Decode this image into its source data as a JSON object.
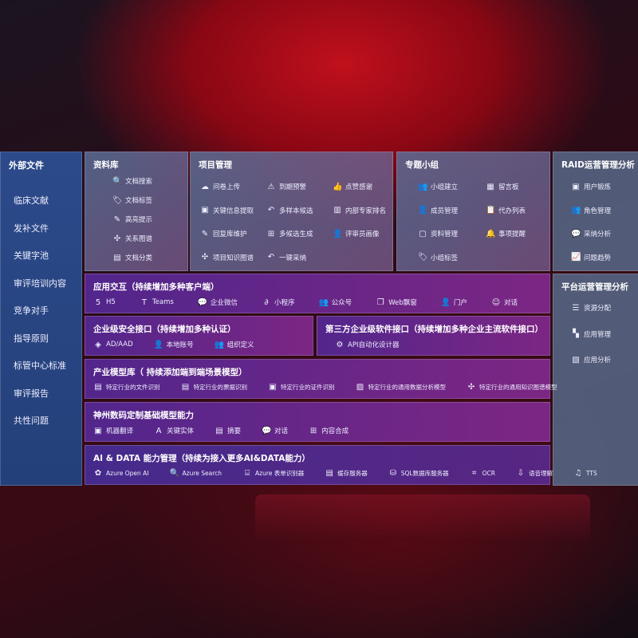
{
  "sidebar": {
    "title": "外部文件",
    "items": [
      "临床文献",
      "发补文件",
      "关键字池",
      "审评培训内容",
      "竞争对手",
      "指导原则",
      "标管中心标准",
      "审评报告",
      "共性问题"
    ]
  },
  "library": {
    "title": "资料库",
    "items": [
      {
        "icon": "doc-search-icon",
        "glyph": "🔍",
        "label": "文档搜索"
      },
      {
        "icon": "tag-icon",
        "glyph": "🏷",
        "label": "文档标签"
      },
      {
        "icon": "pen-icon",
        "glyph": "✎",
        "label": "高亮提示"
      },
      {
        "icon": "graph-icon",
        "glyph": "✣",
        "label": "关系图谱"
      },
      {
        "icon": "doc-classify-icon",
        "glyph": "▤",
        "label": "文档分类"
      }
    ]
  },
  "project": {
    "title": "项目管理",
    "items": [
      {
        "icon": "upload-icon",
        "glyph": "☁",
        "label": "问卷上传"
      },
      {
        "icon": "alarm-icon",
        "glyph": "⚠",
        "label": "到期预警"
      },
      {
        "icon": "thumbs-up-icon",
        "glyph": "👍",
        "label": "点赞感谢"
      },
      {
        "icon": "extract-icon",
        "glyph": "▣",
        "label": "关键信息提取"
      },
      {
        "icon": "reply-icon",
        "glyph": "↶",
        "label": "多样本候选"
      },
      {
        "icon": "rank-icon",
        "glyph": "▥",
        "label": "内部专家排名"
      },
      {
        "icon": "edit-icon",
        "glyph": "✎",
        "label": "回复库维护"
      },
      {
        "icon": "puzzle-icon",
        "glyph": "⊞",
        "label": "多候选生成"
      },
      {
        "icon": "user-icon",
        "glyph": "👤",
        "label": "评审员画像"
      },
      {
        "icon": "graph-icon",
        "glyph": "✣",
        "label": "项目知识图谱"
      },
      {
        "icon": "reply-icon",
        "glyph": "↶",
        "label": "一键采纳"
      }
    ]
  },
  "group": {
    "title": "专题小组",
    "items": [
      {
        "icon": "group-icon",
        "glyph": "👥",
        "label": "小组建立"
      },
      {
        "icon": "bbs-icon",
        "glyph": "▦",
        "label": "留言板"
      },
      {
        "icon": "member-icon",
        "glyph": "👤",
        "label": "成员管理"
      },
      {
        "icon": "clipboard-icon",
        "glyph": "📋",
        "label": "代办列表"
      },
      {
        "icon": "folder-icon",
        "glyph": "▢",
        "label": "资料管理"
      },
      {
        "icon": "bell-icon",
        "glyph": "🔔",
        "label": "事项提醒"
      },
      {
        "icon": "tag-icon",
        "glyph": "🏷",
        "label": "小组标签"
      }
    ]
  },
  "raid": {
    "title": "RAID运营管理分析",
    "items": [
      {
        "icon": "id-card-icon",
        "glyph": "▣",
        "label": "用户锻炼"
      },
      {
        "icon": "roles-icon",
        "glyph": "👥",
        "label": "角色管理"
      },
      {
        "icon": "qa-icon",
        "glyph": "💬",
        "label": "采纳分析"
      },
      {
        "icon": "trend-icon",
        "glyph": "📈",
        "label": "问题趋势"
      }
    ]
  },
  "platform": {
    "title": "平台运营管理分析",
    "items": [
      {
        "icon": "list-icon",
        "glyph": "☰",
        "label": "资源分配"
      },
      {
        "icon": "apps-icon",
        "glyph": "▚",
        "label": "应用管理"
      },
      {
        "icon": "analysis-icon",
        "glyph": "▧",
        "label": "应用分析"
      }
    ]
  },
  "app": {
    "title": "应用交互（持续增加多种客户端）",
    "items": [
      {
        "icon": "html5-icon",
        "glyph": "5",
        "label": "H5"
      },
      {
        "icon": "teams-icon",
        "glyph": "T",
        "label": "Teams"
      },
      {
        "icon": "wecom-icon",
        "glyph": "💬",
        "label": "企业微信"
      },
      {
        "icon": "miniapp-icon",
        "glyph": "∂",
        "label": "小程序"
      },
      {
        "icon": "official-account-icon",
        "glyph": "👥",
        "label": "公众号"
      },
      {
        "icon": "window-icon",
        "glyph": "❐",
        "label": "Web飘窗"
      },
      {
        "icon": "portal-icon",
        "glyph": "👤",
        "label": "门户"
      },
      {
        "icon": "chat-icon",
        "glyph": "☺",
        "label": "对话"
      }
    ]
  },
  "security": {
    "title": "企业级安全接口（持续增加多种认证）",
    "items": [
      {
        "icon": "ad-icon",
        "glyph": "◈",
        "label": "AD/AAD"
      },
      {
        "icon": "local-account-icon",
        "glyph": "👤",
        "label": "本地账号"
      },
      {
        "icon": "org-icon",
        "glyph": "👥",
        "label": "组织定义"
      }
    ]
  },
  "thirdparty": {
    "title": "第三方企业级软件接口（持续增加多种企业主流软件接口）",
    "items": [
      {
        "icon": "gear-icon",
        "glyph": "⚙",
        "label": "API自动化设计器"
      }
    ]
  },
  "industry": {
    "title": "产业模型库（ 持续添加端到端场景模型）",
    "items": [
      {
        "icon": "file-icon",
        "glyph": "▤",
        "label": "特定行业的文件识别"
      },
      {
        "icon": "receipt-icon",
        "glyph": "▤",
        "label": "特定行业的票据识别"
      },
      {
        "icon": "id-icon",
        "glyph": "▣",
        "label": "特定行业的证件识别"
      },
      {
        "icon": "chart-icon",
        "glyph": "▨",
        "label": "特定行业的通用数据分析模型"
      },
      {
        "icon": "graph-icon",
        "glyph": "✣",
        "label": "特定行业的通用知识图谱模型"
      }
    ]
  },
  "base": {
    "title": "神州数码定制基础模型能力",
    "items": [
      {
        "icon": "translate-icon",
        "glyph": "▣",
        "label": "机器翻译"
      },
      {
        "icon": "entity-icon",
        "glyph": "A",
        "label": "关键实体"
      },
      {
        "icon": "summary-icon",
        "glyph": "▤",
        "label": "摘要"
      },
      {
        "icon": "chat-icon",
        "glyph": "💬",
        "label": "对话"
      },
      {
        "icon": "compose-icon",
        "glyph": "⊞",
        "label": "内容合成"
      }
    ]
  },
  "ai": {
    "title": "AI & DATA 能力管理（持续为接入更多AI&DATA能力）",
    "items": [
      {
        "icon": "openai-icon",
        "glyph": "✿",
        "label": "Azure Open AI"
      },
      {
        "icon": "search-icon",
        "glyph": "🔍",
        "label": "Azure Search"
      },
      {
        "icon": "form-icon",
        "glyph": "⌸",
        "label": "Azure 表单识别器"
      },
      {
        "icon": "cache-icon",
        "glyph": "▤",
        "label": "缓存服务器"
      },
      {
        "icon": "sql-icon",
        "glyph": "⛁",
        "label": "SQL数据库服务器"
      },
      {
        "icon": "ocr-icon",
        "glyph": "⌗",
        "label": "OCR"
      },
      {
        "icon": "speech-icon",
        "glyph": "⇩",
        "label": "语音理解"
      },
      {
        "icon": "tts-icon",
        "glyph": "♫",
        "label": "TTS"
      }
    ]
  }
}
